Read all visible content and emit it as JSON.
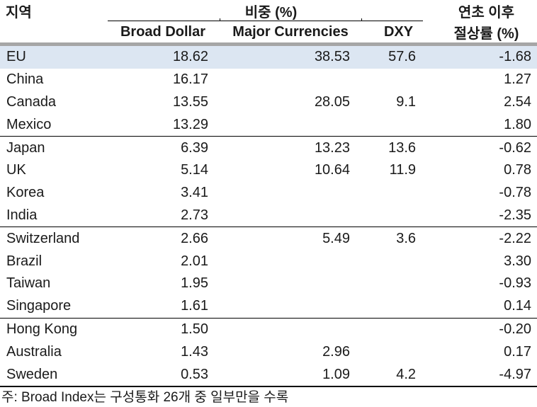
{
  "table": {
    "col1_header": "지역",
    "group_header": "비중 (%)",
    "sub_headers": [
      "Broad Dollar",
      "Major Currencies",
      "DXY"
    ],
    "right_header_line1": "연초 이후",
    "right_header_line2": "절상률 (%)",
    "section_start_indexes": [
      4,
      8,
      12
    ],
    "rows": [
      {
        "region": "EU",
        "broad_dollar": "18.62",
        "major_currencies": "38.53",
        "dxy": "57.6",
        "rate": "-1.68",
        "highlight": true
      },
      {
        "region": "China",
        "broad_dollar": "16.17",
        "major_currencies": "",
        "dxy": "",
        "rate": "1.27",
        "highlight": false
      },
      {
        "region": "Canada",
        "broad_dollar": "13.55",
        "major_currencies": "28.05",
        "dxy": "9.1",
        "rate": "2.54",
        "highlight": false
      },
      {
        "region": "Mexico",
        "broad_dollar": "13.29",
        "major_currencies": "",
        "dxy": "",
        "rate": "1.80",
        "highlight": false
      },
      {
        "region": "Japan",
        "broad_dollar": "6.39",
        "major_currencies": "13.23",
        "dxy": "13.6",
        "rate": "-0.62",
        "highlight": false
      },
      {
        "region": "UK",
        "broad_dollar": "5.14",
        "major_currencies": "10.64",
        "dxy": "11.9",
        "rate": "0.78",
        "highlight": false
      },
      {
        "region": "Korea",
        "broad_dollar": "3.41",
        "major_currencies": "",
        "dxy": "",
        "rate": "-0.78",
        "highlight": false
      },
      {
        "region": "India",
        "broad_dollar": "2.73",
        "major_currencies": "",
        "dxy": "",
        "rate": "-2.35",
        "highlight": false
      },
      {
        "region": "Switzerland",
        "broad_dollar": "2.66",
        "major_currencies": "5.49",
        "dxy": "3.6",
        "rate": "-2.22",
        "highlight": false
      },
      {
        "region": "Brazil",
        "broad_dollar": "2.01",
        "major_currencies": "",
        "dxy": "",
        "rate": "3.30",
        "highlight": false
      },
      {
        "region": "Taiwan",
        "broad_dollar": "1.95",
        "major_currencies": "",
        "dxy": "",
        "rate": "-0.93",
        "highlight": false
      },
      {
        "region": "Singapore",
        "broad_dollar": "1.61",
        "major_currencies": "",
        "dxy": "",
        "rate": "0.14",
        "highlight": false
      },
      {
        "region": "Hong Kong",
        "broad_dollar": "1.50",
        "major_currencies": "",
        "dxy": "",
        "rate": "-0.20",
        "highlight": false
      },
      {
        "region": "Australia",
        "broad_dollar": "1.43",
        "major_currencies": "2.96",
        "dxy": "",
        "rate": "0.17",
        "highlight": false
      },
      {
        "region": "Sweden",
        "broad_dollar": "0.53",
        "major_currencies": "1.09",
        "dxy": "4.2",
        "rate": "-4.97",
        "highlight": false
      }
    ]
  },
  "note": "주: Broad Index는 구성통화 26개 중 일부만을 수록",
  "colors": {
    "highlight_row_bg": "#dce6f2",
    "header_bar": "#a6a6a6",
    "text": "#1a1a1a",
    "line": "#000000"
  },
  "chart_data": {
    "type": "table",
    "title": "",
    "column_groups": [
      {
        "label": "지역",
        "span": 1
      },
      {
        "label": "비중 (%)",
        "span": 3
      },
      {
        "label": "연초 이후 절상률 (%)",
        "span": 1
      }
    ],
    "columns": [
      "지역",
      "Broad Dollar",
      "Major Currencies",
      "DXY",
      "연초 이후 절상률 (%)"
    ],
    "rows": [
      [
        "EU",
        18.62,
        38.53,
        57.6,
        -1.68
      ],
      [
        "China",
        16.17,
        null,
        null,
        1.27
      ],
      [
        "Canada",
        13.55,
        28.05,
        9.1,
        2.54
      ],
      [
        "Mexico",
        13.29,
        null,
        null,
        1.8
      ],
      [
        "Japan",
        6.39,
        13.23,
        13.6,
        -0.62
      ],
      [
        "UK",
        5.14,
        10.64,
        11.9,
        0.78
      ],
      [
        "Korea",
        3.41,
        null,
        null,
        -0.78
      ],
      [
        "India",
        2.73,
        null,
        null,
        -2.35
      ],
      [
        "Switzerland",
        2.66,
        5.49,
        3.6,
        -2.22
      ],
      [
        "Brazil",
        2.01,
        null,
        null,
        3.3
      ],
      [
        "Taiwan",
        1.95,
        null,
        null,
        -0.93
      ],
      [
        "Singapore",
        1.61,
        null,
        null,
        0.14
      ],
      [
        "Hong Kong",
        1.5,
        null,
        null,
        -0.2
      ],
      [
        "Australia",
        1.43,
        2.96,
        null,
        0.17
      ],
      [
        "Sweden",
        0.53,
        1.09,
        4.2,
        -4.97
      ]
    ],
    "note": "주: Broad Index는 구성통화 26개 중 일부만을 수록",
    "highlighted_row": "EU"
  }
}
